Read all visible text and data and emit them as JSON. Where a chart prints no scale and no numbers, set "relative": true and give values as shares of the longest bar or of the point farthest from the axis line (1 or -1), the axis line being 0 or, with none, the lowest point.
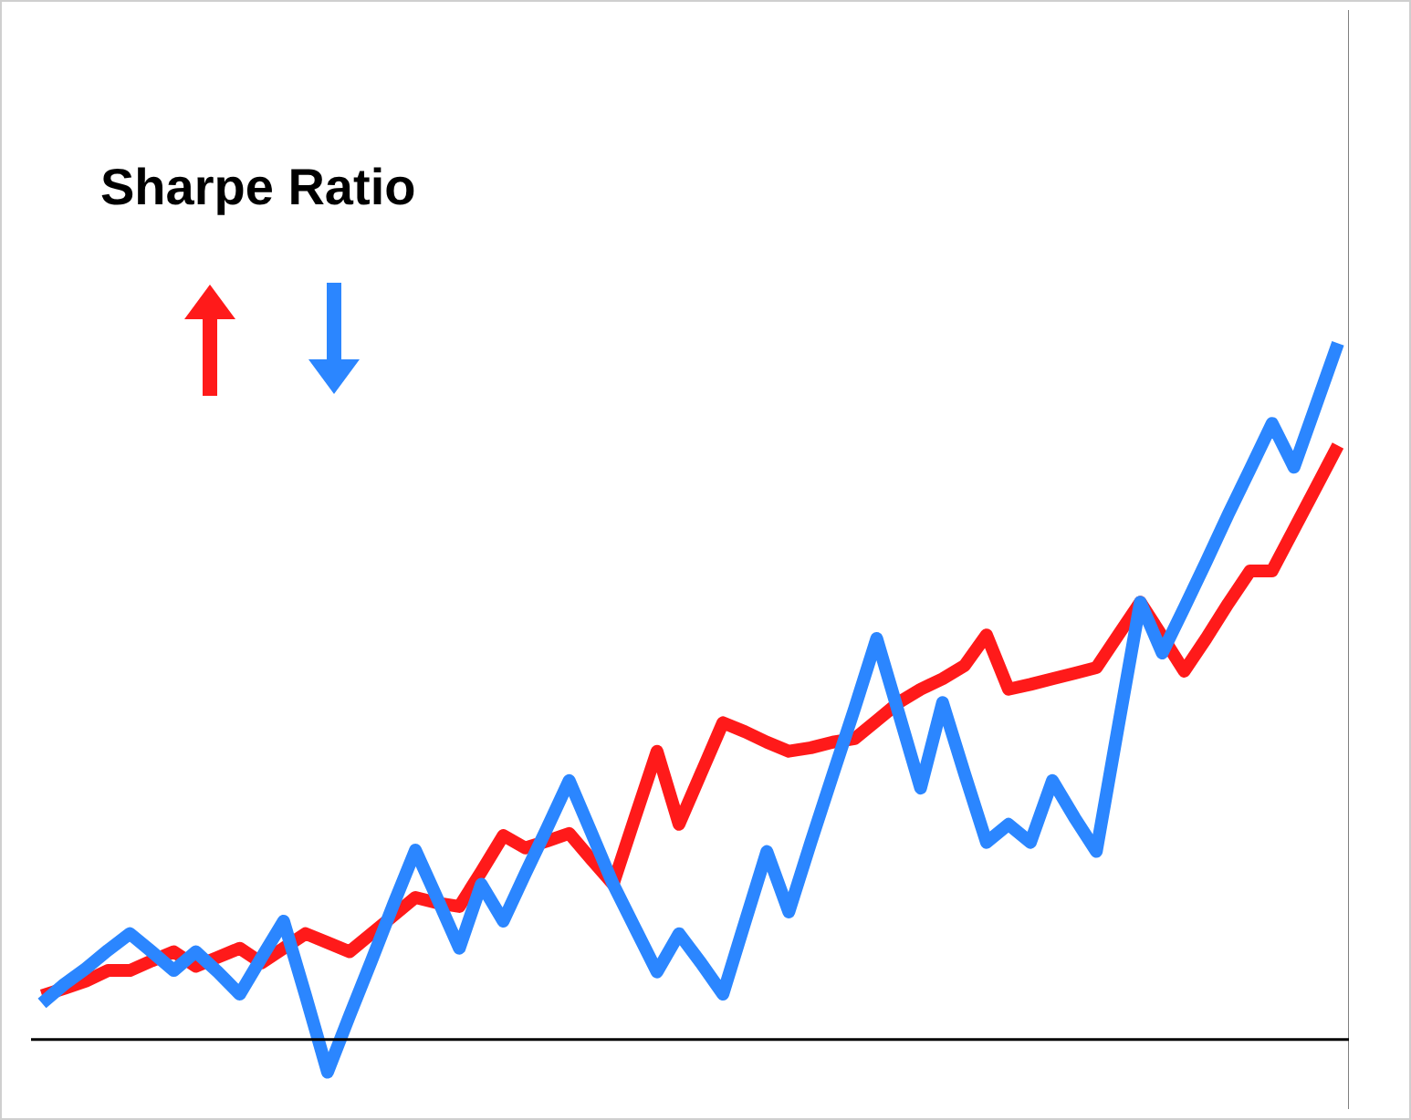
{
  "chart_data": {
    "type": "line",
    "title": "Sharpe Ratio",
    "relative": true,
    "categories": [
      null,
      null,
      null,
      null,
      null,
      null,
      null,
      null,
      null,
      null,
      null,
      null,
      null,
      null,
      null,
      null,
      null,
      null,
      null,
      null,
      null,
      null,
      null,
      null,
      null,
      null,
      null,
      null,
      null,
      null,
      null,
      null,
      null,
      null,
      null,
      null,
      null,
      null,
      null,
      null,
      null,
      null,
      null,
      null,
      null,
      null,
      null,
      null,
      null,
      null,
      null,
      null,
      null,
      null,
      null,
      null,
      null,
      null,
      null,
      null
    ],
    "series": [
      {
        "color": "#ff1a1a",
        "values": [
          0.063,
          0.073,
          0.084,
          0.099,
          0.099,
          0.113,
          0.126,
          0.105,
          0.118,
          0.131,
          0.11,
          0.131,
          0.152,
          0.139,
          0.126,
          0.152,
          0.178,
          0.204,
          0.196,
          0.191,
          0.241,
          0.293,
          0.275,
          0.285,
          0.296,
          0.259,
          0.223,
          0.319,
          0.414,
          0.309,
          0.382,
          0.455,
          0.442,
          0.427,
          0.414,
          0.419,
          0.427,
          0.432,
          0.458,
          0.484,
          0.503,
          0.518,
          0.537,
          0.581,
          0.503,
          0.51,
          0.518,
          0.526,
          0.534,
          0.581,
          0.628,
          0.579,
          0.529,
          0.576,
          0.626,
          0.673,
          0.673,
          0.733,
          0.793,
          0.853
        ]
      },
      {
        "color": "#2b86ff",
        "values": [
          0.052,
          0.079,
          0.102,
          0.128,
          0.152,
          0.126,
          0.099,
          0.126,
          0.097,
          0.065,
          0.118,
          0.17,
          0.063,
          -0.047,
          0.034,
          0.113,
          0.194,
          0.272,
          0.202,
          0.131,
          0.223,
          0.17,
          0.238,
          0.304,
          0.372,
          0.298,
          0.223,
          0.16,
          0.097,
          0.152,
          0.11,
          0.065,
          0.168,
          0.27,
          0.183,
          0.283,
          0.38,
          0.476,
          0.576,
          0.469,
          0.361,
          0.484,
          0.382,
          0.283,
          0.309,
          0.283,
          0.372,
          0.319,
          0.27,
          0.45,
          0.628,
          0.555,
          0.62,
          0.686,
          0.754,
          0.819,
          0.885,
          0.822,
          0.911,
          1
        ]
      }
    ]
  }
}
